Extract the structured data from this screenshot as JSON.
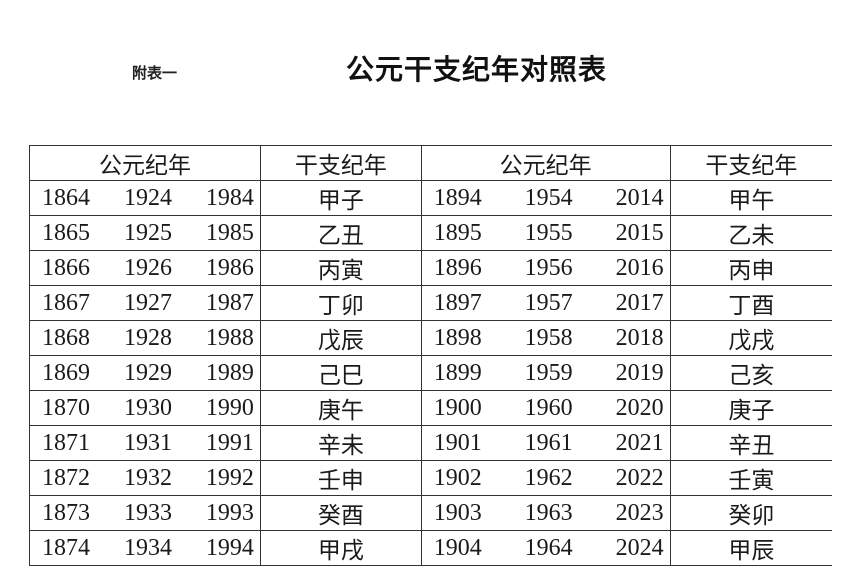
{
  "header": {
    "label": "附表一",
    "title": "公元干支纪年对照表"
  },
  "table": {
    "columns": [
      "公元纪年",
      "干支纪年",
      "公元纪年",
      "干支纪年"
    ],
    "rows": [
      {
        "left_years": [
          "1864",
          "1924",
          "1984"
        ],
        "left_ganzhi": "甲子",
        "right_years": [
          "1894",
          "1954",
          "2014"
        ],
        "right_ganzhi": "甲午"
      },
      {
        "left_years": [
          "1865",
          "1925",
          "1985"
        ],
        "left_ganzhi": "乙丑",
        "right_years": [
          "1895",
          "1955",
          "2015"
        ],
        "right_ganzhi": "乙未"
      },
      {
        "left_years": [
          "1866",
          "1926",
          "1986"
        ],
        "left_ganzhi": "丙寅",
        "right_years": [
          "1896",
          "1956",
          "2016"
        ],
        "right_ganzhi": "丙申"
      },
      {
        "left_years": [
          "1867",
          "1927",
          "1987"
        ],
        "left_ganzhi": "丁卯",
        "right_years": [
          "1897",
          "1957",
          "2017"
        ],
        "right_ganzhi": "丁酉"
      },
      {
        "left_years": [
          "1868",
          "1928",
          "1988"
        ],
        "left_ganzhi": "戊辰",
        "right_years": [
          "1898",
          "1958",
          "2018"
        ],
        "right_ganzhi": "戊戌"
      },
      {
        "left_years": [
          "1869",
          "1929",
          "1989"
        ],
        "left_ganzhi": "己巳",
        "right_years": [
          "1899",
          "1959",
          "2019"
        ],
        "right_ganzhi": "己亥"
      },
      {
        "left_years": [
          "1870",
          "1930",
          "1990"
        ],
        "left_ganzhi": "庚午",
        "right_years": [
          "1900",
          "1960",
          "2020"
        ],
        "right_ganzhi": "庚子"
      },
      {
        "left_years": [
          "1871",
          "1931",
          "1991"
        ],
        "left_ganzhi": "辛未",
        "right_years": [
          "1901",
          "1961",
          "2021"
        ],
        "right_ganzhi": "辛丑"
      },
      {
        "left_years": [
          "1872",
          "1932",
          "1992"
        ],
        "left_ganzhi": "壬申",
        "right_years": [
          "1902",
          "1962",
          "2022"
        ],
        "right_ganzhi": "壬寅"
      },
      {
        "left_years": [
          "1873",
          "1933",
          "1993"
        ],
        "left_ganzhi": "癸酉",
        "right_years": [
          "1903",
          "1963",
          "2023"
        ],
        "right_ganzhi": "癸卯"
      },
      {
        "left_years": [
          "1874",
          "1934",
          "1994"
        ],
        "left_ganzhi": "甲戌",
        "right_years": [
          "1904",
          "1964",
          "2024"
        ],
        "right_ganzhi": "甲辰"
      }
    ]
  }
}
